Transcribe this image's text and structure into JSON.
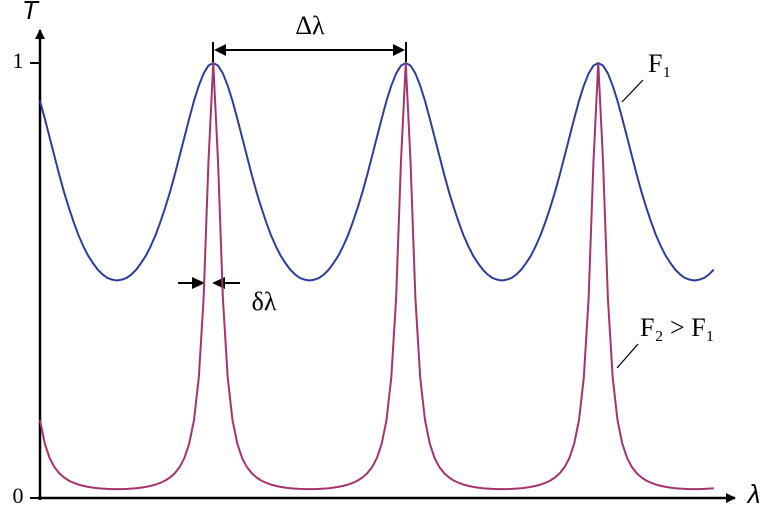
{
  "chart_data": {
    "type": "line",
    "y_label": "T",
    "x_label": "λ",
    "annotations": [
      "Δλ",
      "δλ"
    ],
    "xlim": [
      0,
      3.64
    ],
    "ylim": [
      0,
      1.1
    ],
    "yticks": [
      0,
      1
    ],
    "x": [
      0,
      0.025,
      0.05,
      0.075,
      0.1,
      0.125,
      0.15,
      0.175,
      0.2,
      0.225,
      0.25,
      0.275,
      0.3,
      0.325,
      0.35,
      0.375,
      0.4,
      0.425,
      0.45,
      0.475,
      0.5,
      0.525,
      0.55,
      0.575,
      0.6,
      0.625,
      0.65,
      0.675,
      0.7,
      0.725,
      0.75,
      0.775,
      0.8,
      0.825,
      0.85,
      0.875,
      0.9,
      0.925,
      0.95,
      0.975,
      1,
      1.025,
      1.05,
      1.075,
      1.1,
      1.125,
      1.15,
      1.175,
      1.2,
      1.225,
      1.25,
      1.275,
      1.3,
      1.325,
      1.35,
      1.375,
      1.4,
      1.425,
      1.45,
      1.475,
      1.5,
      1.525,
      1.55,
      1.575,
      1.6,
      1.625,
      1.65,
      1.675,
      1.7,
      1.725,
      1.75,
      1.775,
      1.8,
      1.825,
      1.85,
      1.875,
      1.9,
      1.925,
      1.95,
      1.975,
      2,
      2.025,
      2.05,
      2.075,
      2.1,
      2.125,
      2.15,
      2.175,
      2.2,
      2.225,
      2.25,
      2.275,
      2.3,
      2.325,
      2.35,
      2.375,
      2.4,
      2.425,
      2.45,
      2.475,
      2.5,
      2.525,
      2.55,
      2.575,
      2.6,
      2.625,
      2.65,
      2.675,
      2.7,
      2.725,
      2.75,
      2.775,
      2.8,
      2.825,
      2.85,
      2.875,
      2.9,
      2.925,
      2.95,
      2.975,
      3,
      3.025,
      3.05,
      3.075,
      3.1,
      3.125,
      3.15,
      3.175,
      3.2,
      3.225,
      3.25,
      3.275,
      3.3,
      3.325,
      3.35,
      3.375,
      3.4,
      3.425,
      3.45,
      3.475,
      3.5
    ],
    "series": [
      {
        "name": "F₁",
        "color": "#2e3d9c",
        "values": [
          0.913,
          0.872,
          0.829,
          0.786,
          0.743,
          0.703,
          0.667,
          0.634,
          0.604,
          0.579,
          0.557,
          0.54,
          0.525,
          0.514,
          0.506,
          0.502,
          0.5,
          0.502,
          0.506,
          0.514,
          0.525,
          0.54,
          0.557,
          0.579,
          0.604,
          0.634,
          0.667,
          0.703,
          0.743,
          0.786,
          0.829,
          0.872,
          0.913,
          0.948,
          0.976,
          0.994,
          1,
          0.994,
          0.976,
          0.948,
          0.913,
          0.872,
          0.829,
          0.786,
          0.743,
          0.703,
          0.667,
          0.634,
          0.604,
          0.579,
          0.557,
          0.54,
          0.525,
          0.514,
          0.506,
          0.502,
          0.5,
          0.502,
          0.506,
          0.514,
          0.525,
          0.54,
          0.557,
          0.579,
          0.604,
          0.634,
          0.667,
          0.703,
          0.743,
          0.786,
          0.829,
          0.872,
          0.913,
          0.948,
          0.976,
          0.994,
          1,
          0.994,
          0.976,
          0.948,
          0.913,
          0.872,
          0.829,
          0.786,
          0.743,
          0.703,
          0.667,
          0.634,
          0.604,
          0.579,
          0.557,
          0.54,
          0.525,
          0.514,
          0.506,
          0.502,
          0.5,
          0.502,
          0.506,
          0.514,
          0.525,
          0.54,
          0.557,
          0.579,
          0.604,
          0.634,
          0.667,
          0.703,
          0.743,
          0.786,
          0.829,
          0.872,
          0.913,
          0.948,
          0.976,
          0.994,
          1,
          0.994,
          0.976,
          0.948,
          0.913,
          0.872,
          0.829,
          0.786,
          0.743,
          0.703,
          0.667,
          0.634,
          0.604,
          0.579,
          0.557,
          0.54,
          0.525,
          0.514,
          0.506,
          0.502,
          0.5,
          0.502,
          0.506,
          0.514,
          0.525
        ]
      },
      {
        "name": "F₂ > F₁",
        "color": "#a6336f",
        "values": [
          0.179,
          0.125,
          0.0918,
          0.0709,
          0.0569,
          0.0471,
          0.04,
          0.0348,
          0.0308,
          0.0279,
          0.0255,
          0.0238,
          0.0225,
          0.0216,
          0.0209,
          0.0205,
          0.0204,
          0.0205,
          0.0209,
          0.0216,
          0.0225,
          0.0238,
          0.0255,
          0.0279,
          0.0308,
          0.0348,
          0.04,
          0.0471,
          0.0569,
          0.0709,
          0.0918,
          0.125,
          0.179,
          0.277,
          0.46,
          0.772,
          1,
          0.772,
          0.46,
          0.277,
          0.179,
          0.125,
          0.0918,
          0.0709,
          0.0569,
          0.0471,
          0.04,
          0.0348,
          0.0308,
          0.0279,
          0.0255,
          0.0238,
          0.0225,
          0.0216,
          0.0209,
          0.0205,
          0.0204,
          0.0205,
          0.0209,
          0.0216,
          0.0225,
          0.0238,
          0.0255,
          0.0279,
          0.0308,
          0.0348,
          0.04,
          0.0471,
          0.0569,
          0.0709,
          0.0918,
          0.125,
          0.179,
          0.277,
          0.46,
          0.772,
          1,
          0.772,
          0.46,
          0.277,
          0.179,
          0.125,
          0.0918,
          0.0709,
          0.0569,
          0.0471,
          0.04,
          0.0348,
          0.0308,
          0.0279,
          0.0255,
          0.0238,
          0.0225,
          0.0216,
          0.0209,
          0.0205,
          0.0204,
          0.0205,
          0.0209,
          0.0216,
          0.0225,
          0.0238,
          0.0255,
          0.0279,
          0.0308,
          0.0348,
          0.04,
          0.0471,
          0.0569,
          0.0709,
          0.0918,
          0.125,
          0.179,
          0.277,
          0.46,
          0.772,
          1,
          0.772,
          0.46,
          0.277,
          0.179,
          0.125,
          0.0918,
          0.0709,
          0.0569,
          0.0471,
          0.04,
          0.0348,
          0.0308,
          0.0279,
          0.0255,
          0.0238,
          0.0225,
          0.0216,
          0.0209,
          0.0205,
          0.0204,
          0.0205,
          0.0209,
          0.0216,
          0.0225
        ]
      }
    ]
  }
}
